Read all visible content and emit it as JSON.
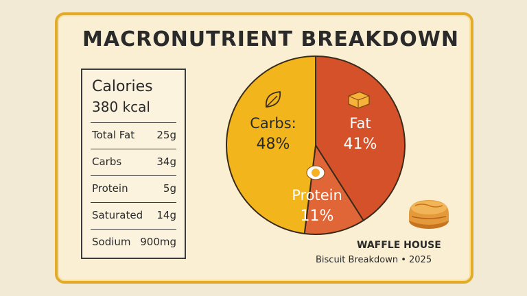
{
  "title": "MACRONUTRIENT BREAKDOWN",
  "nutrition": {
    "calories_label": "Calories",
    "calories_value": "380 kcal",
    "rows": [
      {
        "label": "Total Fat",
        "value": "25g"
      },
      {
        "label": "Carbs",
        "value": "34g"
      },
      {
        "label": "Protein",
        "value": "5g"
      },
      {
        "label": "Saturated",
        "value": "14g"
      },
      {
        "label": "Sodium",
        "value": "900mg"
      }
    ]
  },
  "chart_data": {
    "type": "pie",
    "title": "MACRONUTRIENT BREAKDOWN",
    "slices": [
      {
        "label": "Carbs:",
        "value": 48,
        "display": "48%",
        "color": "#f2b51c",
        "icon": "leaf-icon"
      },
      {
        "label": "Fat",
        "value": 41,
        "display": "41%",
        "color": "#d5512a",
        "icon": "butter-icon"
      },
      {
        "label": "Protein",
        "value": 11,
        "display": "11%",
        "color": "#e06537",
        "icon": "egg-icon"
      }
    ]
  },
  "footer": {
    "brand": "WAFFLE HOUSE",
    "subtitle": "Biscuit Breakdown  •  2025",
    "image_icon": "biscuit-icon"
  }
}
